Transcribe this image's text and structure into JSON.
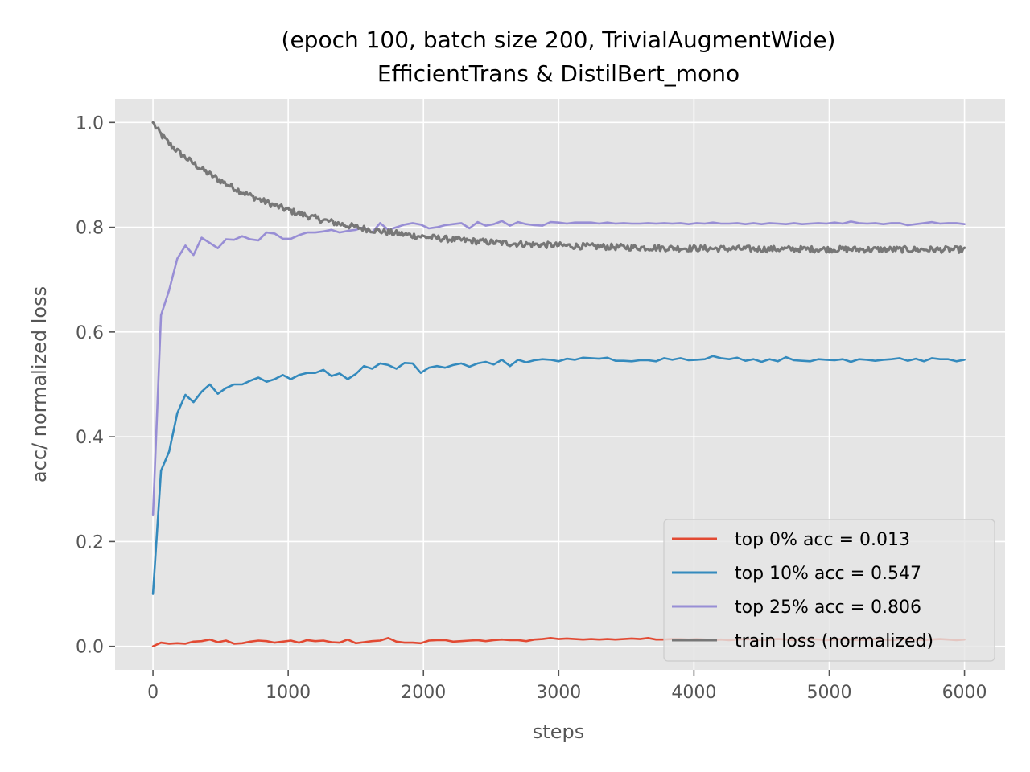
{
  "chart_data": {
    "type": "line",
    "title_line1": "(epoch 100, batch size 200, TrivialAugmentWide)",
    "title_line2": "EfficientTrans & DistilBert_mono",
    "xlabel": "steps",
    "ylabel": "acc/ normalized loss",
    "xlim": [
      -280,
      6300
    ],
    "ylim": [
      -0.045,
      1.045
    ],
    "x_ticks": [
      0,
      1000,
      2000,
      3000,
      4000,
      5000,
      6000
    ],
    "x_tick_labels": [
      "0",
      "1000",
      "2000",
      "3000",
      "4000",
      "5000",
      "6000"
    ],
    "y_ticks": [
      0.0,
      0.2,
      0.4,
      0.6,
      0.8,
      1.0
    ],
    "y_tick_labels": [
      "0.0",
      "0.2",
      "0.4",
      "0.6",
      "0.8",
      "1.0"
    ],
    "grid": true,
    "style": "ggplot",
    "legend_position": "lower-right",
    "series": [
      {
        "name": "top 0% acc = 0.013",
        "color": "#E24A33",
        "x": [
          0,
          60,
          120,
          180,
          240,
          300,
          360,
          420,
          480,
          540,
          600,
          660,
          720,
          780,
          840,
          900,
          960,
          1020,
          1080,
          1140,
          1200,
          1260,
          1320,
          1380,
          1440,
          1500,
          1560,
          1620,
          1680,
          1740,
          1800,
          1860,
          1920,
          1980,
          2040,
          2100,
          2160,
          2220,
          2280,
          2340,
          2400,
          2460,
          2520,
          2580,
          2640,
          2700,
          2760,
          2820,
          2880,
          2940,
          3000,
          3060,
          3120,
          3180,
          3240,
          3300,
          3360,
          3420,
          3480,
          3540,
          3600,
          3660,
          3720,
          3780,
          3840,
          3900,
          3960,
          4020,
          4080,
          4140,
          4200,
          4260,
          4320,
          4380,
          4440,
          4500,
          4560,
          4620,
          4680,
          4740,
          4800,
          4860,
          4920,
          4980,
          5040,
          5100,
          5160,
          5220,
          5280,
          5340,
          5400,
          5460,
          5520,
          5580,
          5640,
          5700,
          5760,
          5820,
          5880,
          5940,
          6000
        ],
        "y": [
          0.0,
          0.007,
          0.005,
          0.006,
          0.005,
          0.009,
          0.01,
          0.013,
          0.008,
          0.011,
          0.005,
          0.006,
          0.009,
          0.011,
          0.01,
          0.007,
          0.009,
          0.011,
          0.007,
          0.012,
          0.01,
          0.011,
          0.008,
          0.007,
          0.013,
          0.006,
          0.008,
          0.01,
          0.011,
          0.016,
          0.009,
          0.007,
          0.007,
          0.006,
          0.011,
          0.012,
          0.012,
          0.009,
          0.01,
          0.011,
          0.012,
          0.01,
          0.012,
          0.013,
          0.012,
          0.012,
          0.01,
          0.013,
          0.014,
          0.016,
          0.014,
          0.015,
          0.014,
          0.013,
          0.014,
          0.013,
          0.014,
          0.013,
          0.014,
          0.015,
          0.014,
          0.016,
          0.013,
          0.013,
          0.014,
          0.014,
          0.013,
          0.014,
          0.013,
          0.012,
          0.013,
          0.012,
          0.013,
          0.014,
          0.013,
          0.012,
          0.013,
          0.014,
          0.013,
          0.012,
          0.013,
          0.014,
          0.013,
          0.012,
          0.013,
          0.014,
          0.013,
          0.012,
          0.013,
          0.014,
          0.013,
          0.012,
          0.013,
          0.014,
          0.013,
          0.012,
          0.013,
          0.014,
          0.013,
          0.012,
          0.013
        ]
      },
      {
        "name": "top 10% acc = 0.547",
        "color": "#348ABD",
        "x": [
          0,
          60,
          120,
          180,
          240,
          300,
          360,
          420,
          480,
          540,
          600,
          660,
          720,
          780,
          840,
          900,
          960,
          1020,
          1080,
          1140,
          1200,
          1260,
          1320,
          1380,
          1440,
          1500,
          1560,
          1620,
          1680,
          1740,
          1800,
          1860,
          1920,
          1980,
          2040,
          2100,
          2160,
          2220,
          2280,
          2340,
          2400,
          2460,
          2520,
          2580,
          2640,
          2700,
          2760,
          2820,
          2880,
          2940,
          3000,
          3060,
          3120,
          3180,
          3240,
          3300,
          3360,
          3420,
          3480,
          3540,
          3600,
          3660,
          3720,
          3780,
          3840,
          3900,
          3960,
          4020,
          4080,
          4140,
          4200,
          4260,
          4320,
          4380,
          4440,
          4500,
          4560,
          4620,
          4680,
          4740,
          4800,
          4860,
          4920,
          4980,
          5040,
          5100,
          5160,
          5220,
          5280,
          5340,
          5400,
          5460,
          5520,
          5580,
          5640,
          5700,
          5760,
          5820,
          5880,
          5940,
          6000
        ],
        "y": [
          0.1,
          0.335,
          0.372,
          0.445,
          0.48,
          0.466,
          0.486,
          0.5,
          0.482,
          0.493,
          0.5,
          0.5,
          0.507,
          0.513,
          0.505,
          0.51,
          0.518,
          0.51,
          0.518,
          0.522,
          0.522,
          0.528,
          0.516,
          0.521,
          0.51,
          0.52,
          0.535,
          0.53,
          0.54,
          0.537,
          0.53,
          0.541,
          0.54,
          0.522,
          0.532,
          0.535,
          0.532,
          0.537,
          0.54,
          0.534,
          0.54,
          0.543,
          0.538,
          0.547,
          0.535,
          0.547,
          0.542,
          0.546,
          0.548,
          0.547,
          0.544,
          0.549,
          0.547,
          0.551,
          0.55,
          0.549,
          0.551,
          0.545,
          0.545,
          0.544,
          0.546,
          0.546,
          0.544,
          0.55,
          0.547,
          0.55,
          0.546,
          0.547,
          0.548,
          0.554,
          0.55,
          0.548,
          0.551,
          0.545,
          0.548,
          0.543,
          0.548,
          0.544,
          0.552,
          0.546,
          0.545,
          0.544,
          0.548,
          0.547,
          0.546,
          0.548,
          0.543,
          0.548,
          0.547,
          0.545,
          0.547,
          0.548,
          0.55,
          0.545,
          0.549,
          0.544,
          0.55,
          0.548,
          0.548,
          0.544,
          0.547
        ]
      },
      {
        "name": "top 25% acc = 0.806",
        "color": "#988ED5",
        "x": [
          0,
          60,
          120,
          180,
          240,
          300,
          360,
          420,
          480,
          540,
          600,
          660,
          720,
          780,
          840,
          900,
          960,
          1020,
          1080,
          1140,
          1200,
          1260,
          1320,
          1380,
          1440,
          1500,
          1560,
          1620,
          1680,
          1740,
          1800,
          1860,
          1920,
          1980,
          2040,
          2100,
          2160,
          2220,
          2280,
          2340,
          2400,
          2460,
          2520,
          2580,
          2640,
          2700,
          2760,
          2820,
          2880,
          2940,
          3000,
          3060,
          3120,
          3180,
          3240,
          3300,
          3360,
          3420,
          3480,
          3540,
          3600,
          3660,
          3720,
          3780,
          3840,
          3900,
          3960,
          4020,
          4080,
          4140,
          4200,
          4260,
          4320,
          4380,
          4440,
          4500,
          4560,
          4620,
          4680,
          4740,
          4800,
          4860,
          4920,
          4980,
          5040,
          5100,
          5160,
          5220,
          5280,
          5340,
          5400,
          5460,
          5520,
          5580,
          5640,
          5700,
          5760,
          5820,
          5880,
          5940,
          6000
        ],
        "y": [
          0.25,
          0.632,
          0.68,
          0.74,
          0.765,
          0.747,
          0.78,
          0.77,
          0.76,
          0.777,
          0.776,
          0.783,
          0.777,
          0.775,
          0.79,
          0.788,
          0.778,
          0.778,
          0.785,
          0.79,
          0.79,
          0.792,
          0.795,
          0.79,
          0.793,
          0.795,
          0.8,
          0.79,
          0.808,
          0.795,
          0.8,
          0.805,
          0.808,
          0.805,
          0.798,
          0.8,
          0.804,
          0.806,
          0.808,
          0.798,
          0.81,
          0.803,
          0.806,
          0.812,
          0.803,
          0.81,
          0.806,
          0.804,
          0.803,
          0.81,
          0.809,
          0.807,
          0.809,
          0.809,
          0.809,
          0.807,
          0.809,
          0.807,
          0.808,
          0.807,
          0.807,
          0.808,
          0.807,
          0.808,
          0.807,
          0.808,
          0.806,
          0.808,
          0.807,
          0.809,
          0.807,
          0.807,
          0.808,
          0.806,
          0.808,
          0.806,
          0.808,
          0.807,
          0.806,
          0.808,
          0.806,
          0.807,
          0.808,
          0.807,
          0.809,
          0.807,
          0.811,
          0.808,
          0.807,
          0.808,
          0.806,
          0.808,
          0.808,
          0.804,
          0.806,
          0.808,
          0.81,
          0.807,
          0.808,
          0.808,
          0.806
        ]
      },
      {
        "name": "train loss (normalized)",
        "color": "#777777",
        "curve": {
          "type": "exponential-decay",
          "start": 1.0,
          "plateau": 0.757,
          "x_end": 6000,
          "noise_amplitude": 0.006
        }
      }
    ]
  }
}
